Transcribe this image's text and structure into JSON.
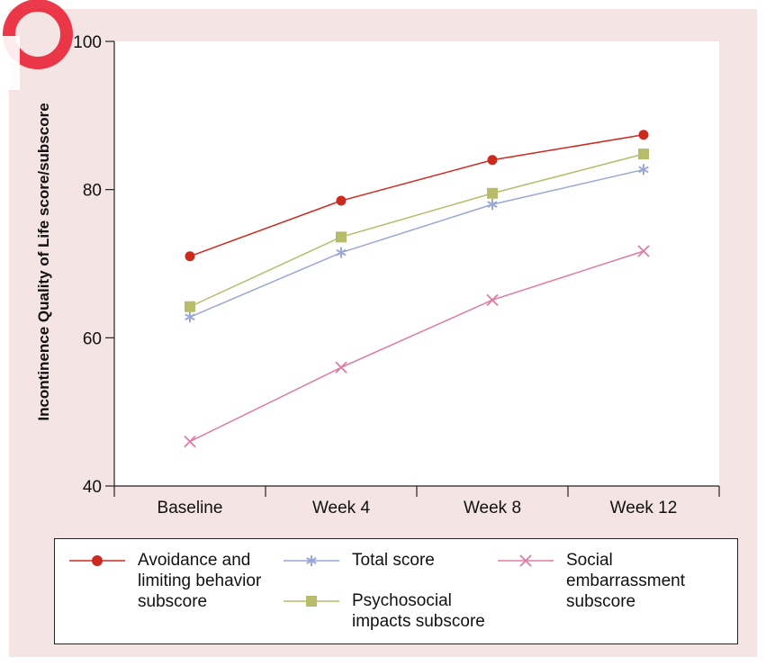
{
  "chart_data": {
    "type": "line",
    "ylabel": "Incontinence Quality of Life score/subscore",
    "xlabel": "",
    "categories": [
      "Baseline",
      "Week 4",
      "Week 8",
      "Week 12"
    ],
    "ylim": [
      40,
      100
    ],
    "yticks": [
      40,
      60,
      80,
      100
    ],
    "grid": false,
    "legend_position": "bottom",
    "series": [
      {
        "name": "Avoidance and limiting behavior subscore",
        "values": [
          71.0,
          78.5,
          84.0,
          87.4
        ],
        "color": "#cc2a1f",
        "marker": "circle"
      },
      {
        "name": "Total score",
        "values": [
          62.8,
          71.5,
          78.0,
          82.7
        ],
        "color": "#9aa6d6",
        "marker": "star"
      },
      {
        "name": "Psychosocial impacts subscore",
        "values": [
          64.2,
          73.6,
          79.5,
          84.8
        ],
        "color": "#b6bc6a",
        "marker": "square"
      },
      {
        "name": "Social embarrassment subscore",
        "values": [
          46.0,
          56.0,
          65.1,
          71.7
        ],
        "color": "#e07aa4",
        "marker": "x"
      }
    ]
  },
  "legend": {
    "avoidance_lines": [
      "Avoidance and",
      "limiting behavior",
      "subscore"
    ],
    "total_lines": [
      "Total score"
    ],
    "psychosocial_lines": [
      "Psychosocial",
      "impacts subscore"
    ],
    "social_lines": [
      "Social",
      "embarrassment",
      "subscore"
    ]
  },
  "decoration": {
    "watermark_color": "#e8172b"
  }
}
